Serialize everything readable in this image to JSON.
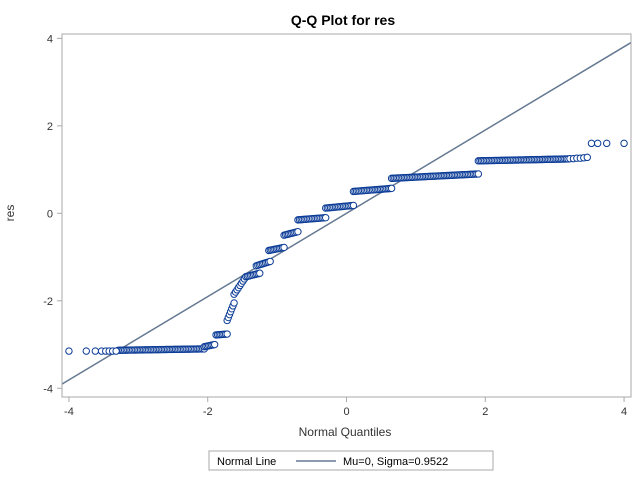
{
  "chart_data": {
    "type": "scatter",
    "title": "Q-Q Plot for res",
    "xlabel": "Normal Quantiles",
    "ylabel": "res",
    "xlim": [
      -4.1,
      4.1
    ],
    "ylim": [
      -4.2,
      4.1
    ],
    "xticks": [
      -4,
      -2,
      0,
      2,
      4
    ],
    "yticks": [
      -4,
      -2,
      0,
      2,
      4
    ],
    "x_tick_labels": [
      "-4",
      "-2",
      "0",
      "2",
      "4"
    ],
    "y_tick_labels": [
      "-4",
      "-2",
      "0",
      "2",
      "4"
    ],
    "grid": false,
    "legend_position": "bottom",
    "legend": {
      "label": "Normal Line",
      "entry": "Mu=0, Sigma=0.9522"
    },
    "reference_line": {
      "mu": 0,
      "sigma": 0.9522
    },
    "colors": {
      "points": "#0a3b96",
      "line": "#667a93",
      "frame": "#a9a9a9"
    },
    "steps": [
      {
        "x0": -4.0,
        "x1": -2.05,
        "y0": -3.15,
        "y1": -3.1,
        "n": 12,
        "sparse_below": -3.3
      },
      {
        "x0": -2.05,
        "x1": -1.9,
        "y0": -3.05,
        "y1": -3.0,
        "n": 4
      },
      {
        "x0": -1.88,
        "x1": -1.72,
        "y0": -2.78,
        "y1": -2.76,
        "n": 6
      },
      {
        "x0": -1.72,
        "x1": -1.62,
        "y0": -2.45,
        "y1": -2.05,
        "n": 6
      },
      {
        "x0": -1.62,
        "x1": -1.45,
        "y0": -1.85,
        "y1": -1.45,
        "n": 8
      },
      {
        "x0": -1.45,
        "x1": -1.25,
        "y0": -1.45,
        "y1": -1.37,
        "n": 8
      },
      {
        "x0": -1.3,
        "x1": -1.1,
        "y0": -1.2,
        "y1": -1.1,
        "n": 8
      },
      {
        "x0": -1.12,
        "x1": -0.9,
        "y0": -0.85,
        "y1": -0.78,
        "n": 8
      },
      {
        "x0": -0.9,
        "x1": -0.7,
        "y0": -0.5,
        "y1": -0.42,
        "n": 8
      },
      {
        "x0": -0.7,
        "x1": -0.3,
        "y0": -0.15,
        "y1": -0.1,
        "n": 12
      },
      {
        "x0": -0.3,
        "x1": 0.1,
        "y0": 0.12,
        "y1": 0.18,
        "n": 12
      },
      {
        "x0": 0.1,
        "x1": 0.65,
        "y0": 0.5,
        "y1": 0.57,
        "n": 14
      },
      {
        "x0": 0.65,
        "x1": 1.9,
        "y0": 0.8,
        "y1": 0.9,
        "n": 24
      },
      {
        "x0": 1.9,
        "x1": 4.0,
        "y0": 1.2,
        "y1": 1.27,
        "n": 28,
        "sparse_above": 3.2
      }
    ],
    "extreme_points": [
      {
        "x": -4.0,
        "y": -3.15
      },
      {
        "x": -3.75,
        "y": -3.15
      },
      {
        "x": -3.62,
        "y": -3.15
      },
      {
        "x": -3.53,
        "y": -3.15
      },
      {
        "x": -3.47,
        "y": -3.15
      },
      {
        "x": -3.42,
        "y": -3.15
      },
      {
        "x": -3.37,
        "y": -3.15
      },
      {
        "x": -3.32,
        "y": -3.15
      },
      {
        "x": 3.22,
        "y": 1.25
      },
      {
        "x": 3.27,
        "y": 1.25
      },
      {
        "x": 3.32,
        "y": 1.26
      },
      {
        "x": 3.37,
        "y": 1.26
      },
      {
        "x": 3.42,
        "y": 1.27
      },
      {
        "x": 3.47,
        "y": 1.28
      },
      {
        "x": 3.53,
        "y": 1.6
      },
      {
        "x": 3.62,
        "y": 1.6
      },
      {
        "x": 3.75,
        "y": 1.6
      },
      {
        "x": 4.0,
        "y": 1.6
      }
    ]
  }
}
